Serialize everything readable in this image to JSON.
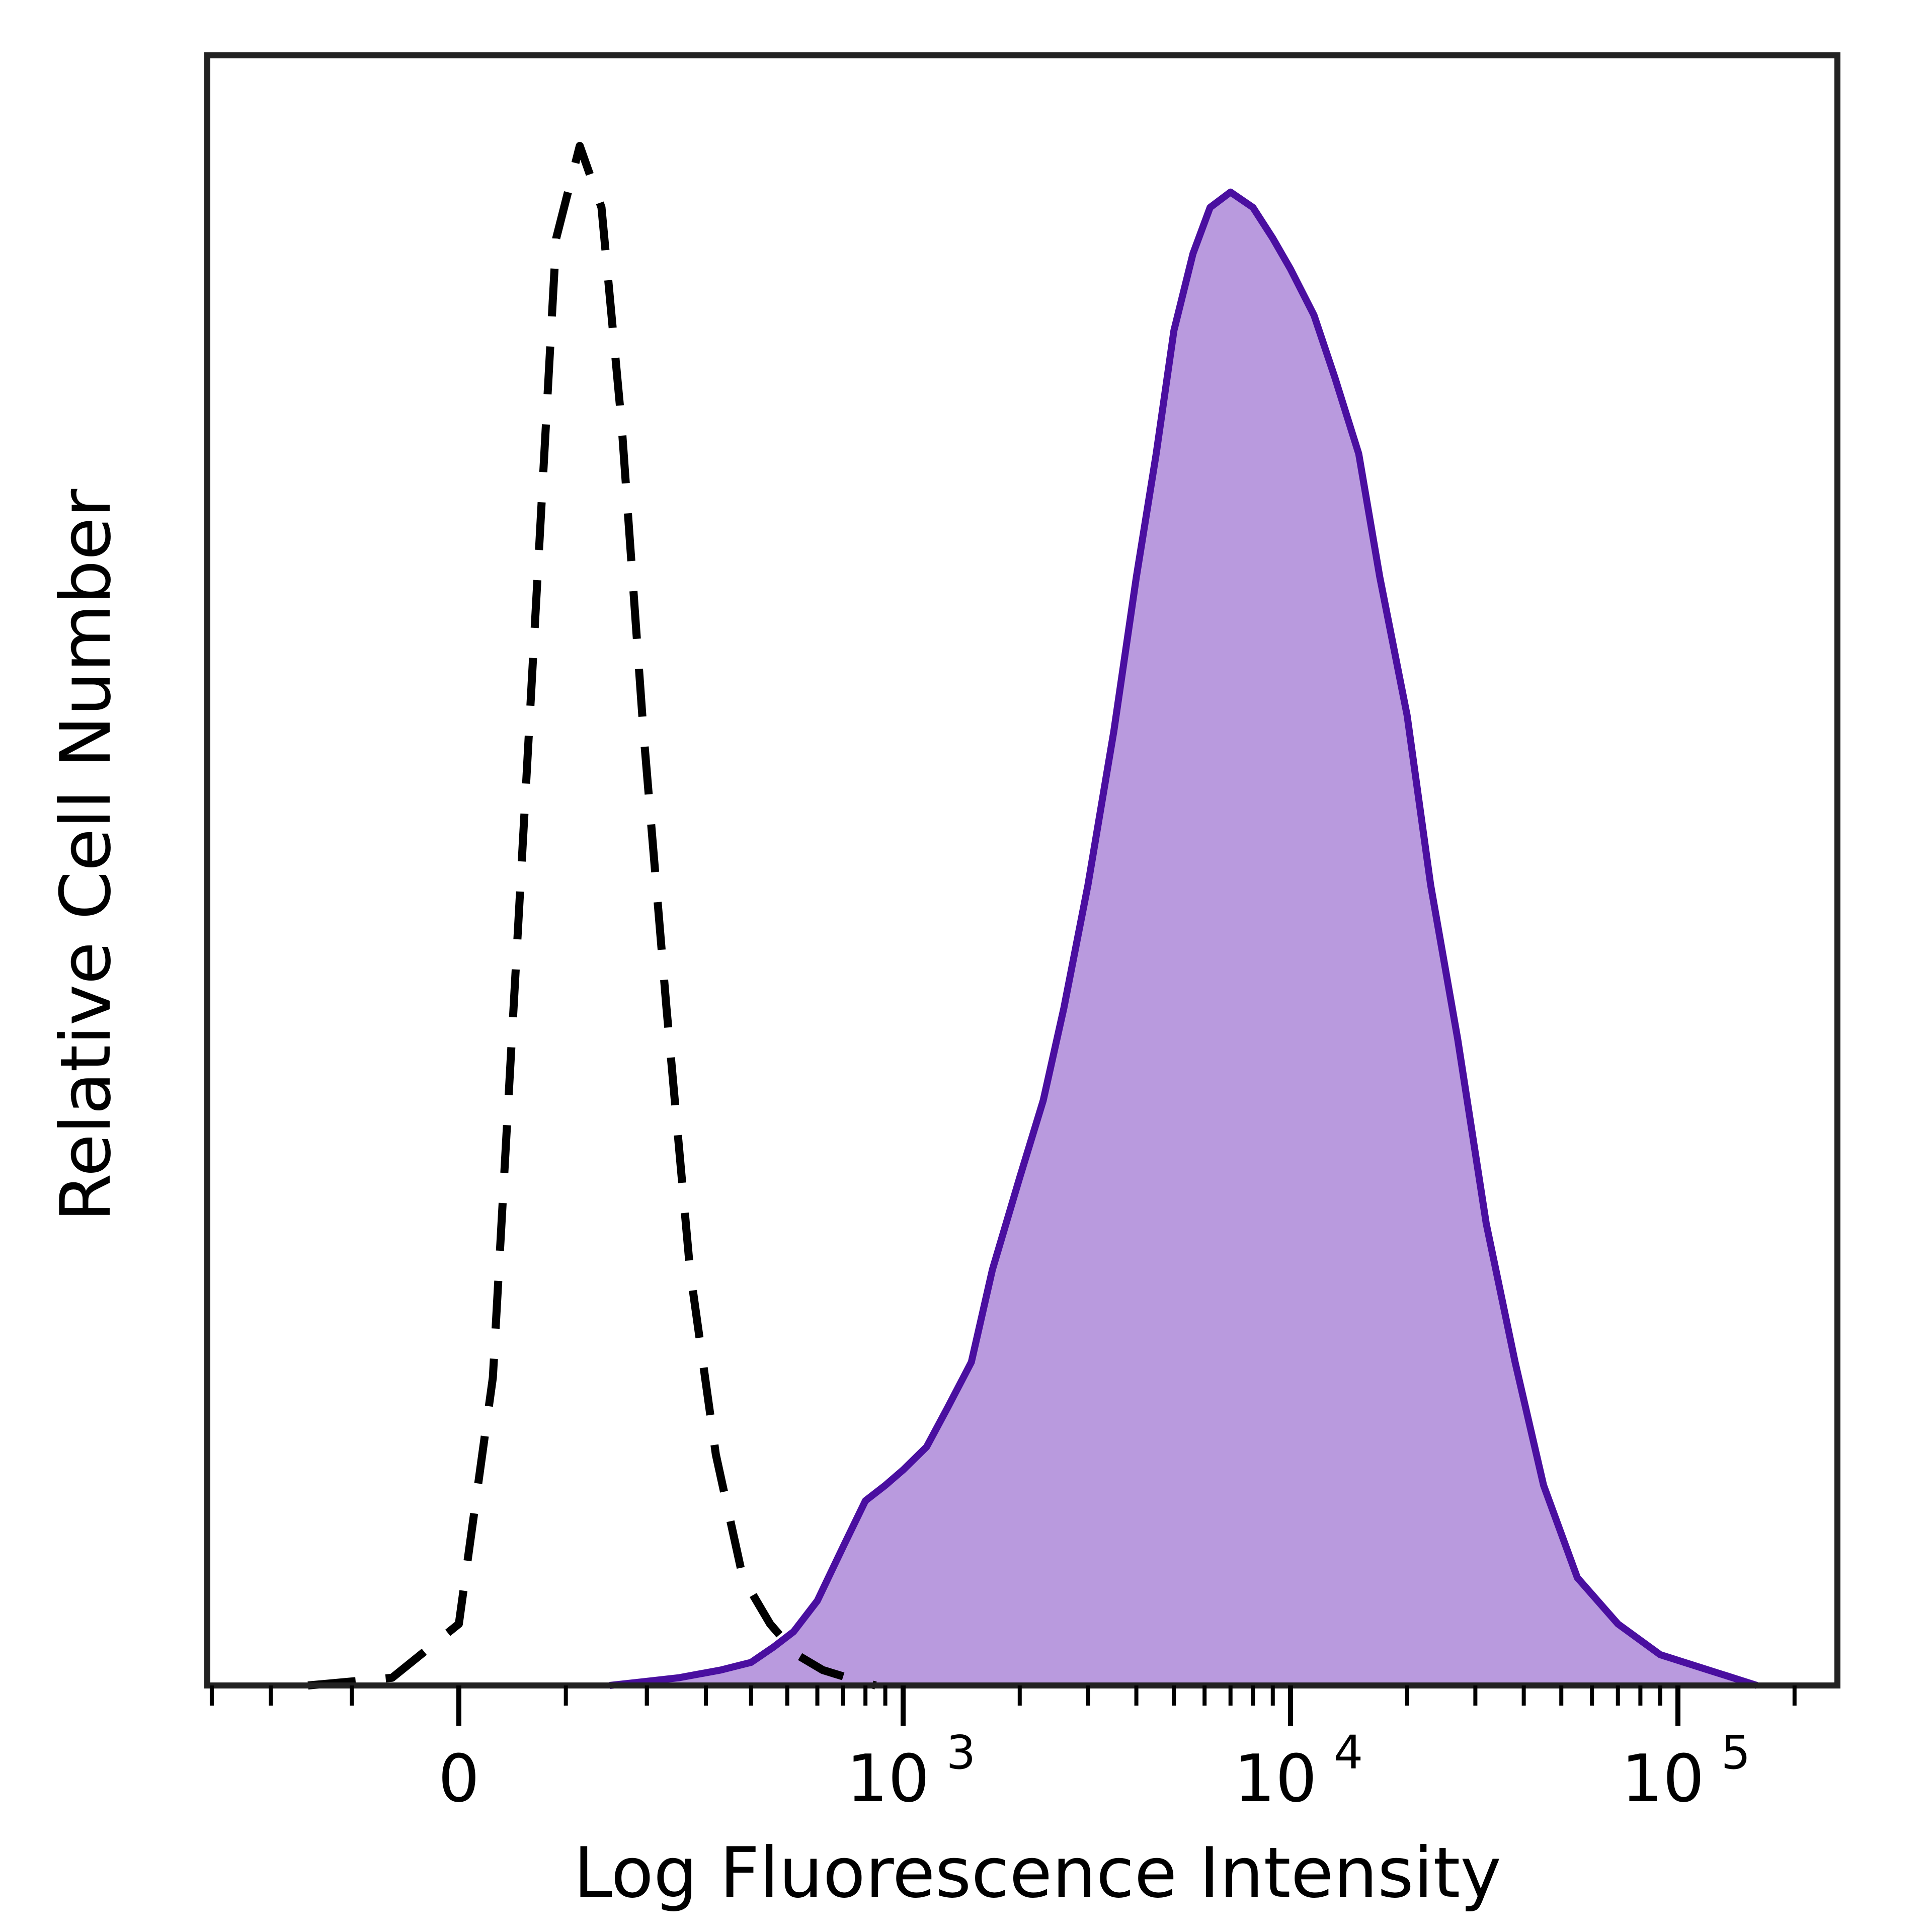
{
  "chart_data": {
    "type": "area",
    "title": "",
    "xlabel": "Log Fluorescence Intensity",
    "ylabel": "Relative Cell Number",
    "x_scale": "biexponential",
    "xlim": [
      -400,
      200000
    ],
    "ylim": [
      0,
      100
    ],
    "grid": false,
    "legend": "none",
    "x_ticks": [
      {
        "value": 0,
        "base": "0",
        "exp": ""
      },
      {
        "value": 1000,
        "base": "10",
        "exp": "3"
      },
      {
        "value": 10000,
        "base": "10",
        "exp": "4"
      },
      {
        "value": 100000,
        "base": "10",
        "exp": "5"
      }
    ],
    "colors": {
      "stained_line": "#4a0fa0",
      "stained_fill": "#b99ade",
      "control_line": "#000000",
      "frame": "#222222"
    },
    "series": [
      {
        "style": "dashed",
        "x": [
          -150,
          -60,
          0,
          30,
          60,
          90,
          115,
          140,
          165,
          195,
          230,
          270,
          320,
          380,
          450,
          530,
          620,
          720,
          850
        ],
        "y": [
          0,
          0.5,
          4,
          20,
          58,
          94,
          100,
          96,
          82,
          62,
          44,
          27,
          15,
          7,
          4,
          2,
          1,
          0.5,
          0
        ]
      },
      {
        "style": "filled",
        "x": [
          150,
          250,
          330,
          400,
          460,
          520,
          600,
          700,
          800,
          900,
          1000,
          1150,
          1300,
          1500,
          1700,
          2000,
          2300,
          2600,
          3000,
          3500,
          4000,
          4500,
          5000,
          5600,
          6200,
          7000,
          8000,
          9000,
          10000,
          11500,
          13000,
          15000,
          17000,
          20000,
          23000,
          27000,
          32000,
          38000,
          45000,
          55000,
          70000,
          90000,
          120000,
          160000
        ],
        "y": [
          0,
          0.5,
          1,
          1.5,
          2.5,
          3.5,
          5.5,
          9,
          12,
          13,
          14,
          15.5,
          18,
          21,
          27,
          33,
          38,
          44,
          52,
          62,
          72,
          80,
          88,
          93,
          96,
          97,
          96,
          94,
          92,
          89,
          85,
          80,
          72,
          63,
          52,
          42,
          30,
          21,
          13,
          7,
          4,
          2,
          1,
          0
        ]
      }
    ]
  }
}
